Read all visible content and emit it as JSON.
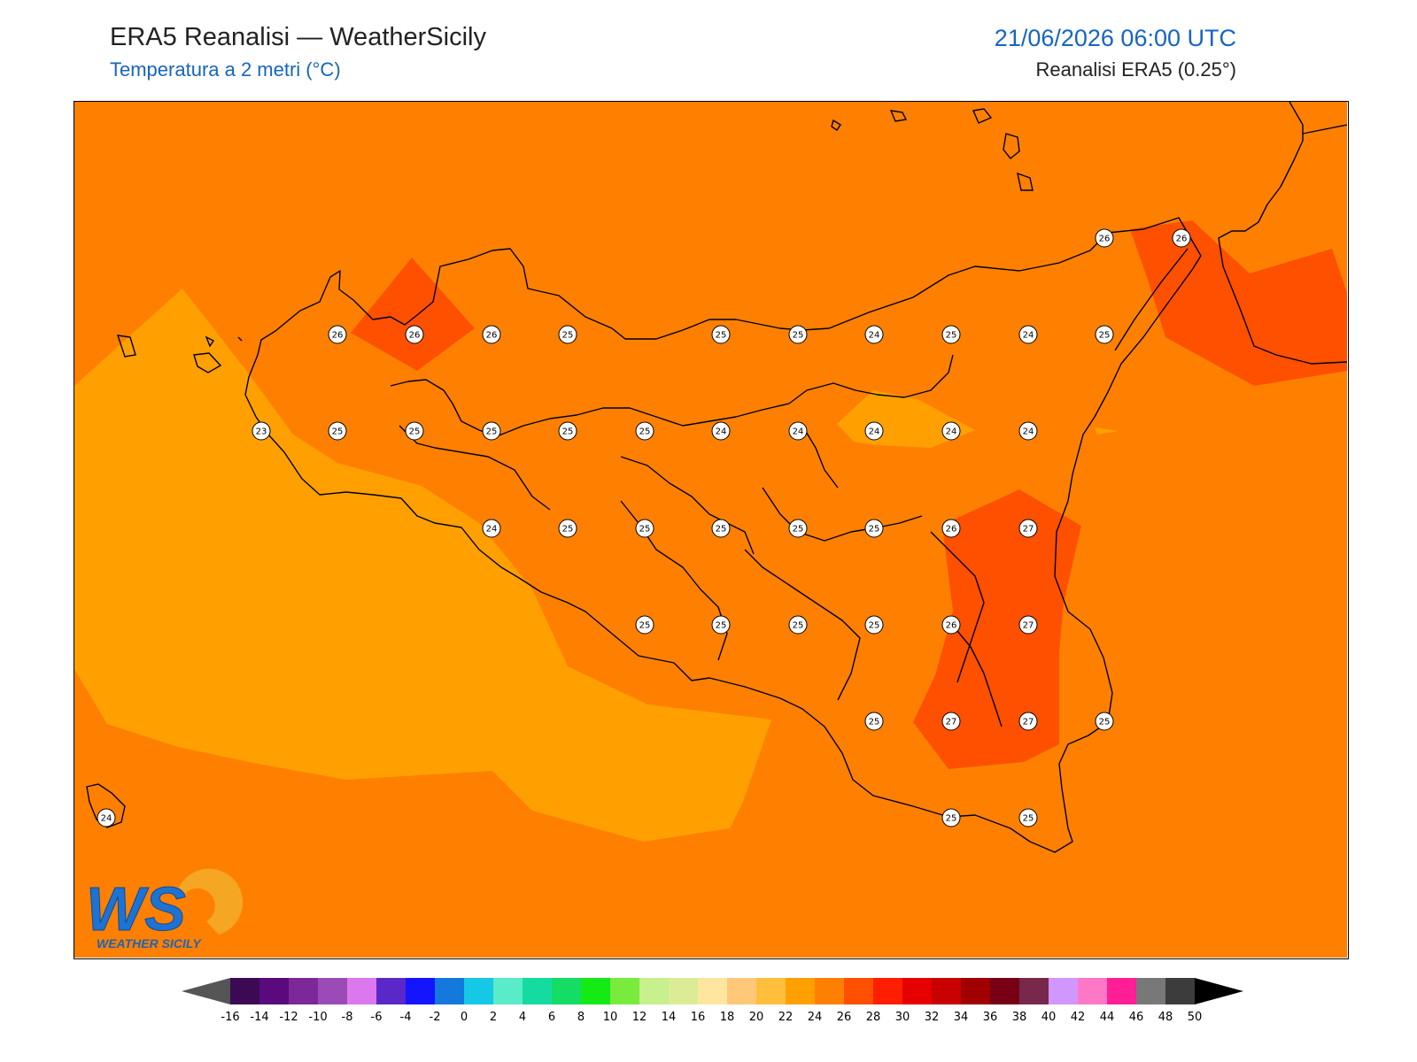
{
  "header": {
    "title": "ERA5 Reanalisi — WeatherSicily",
    "subtitle": "Temperatura a 2 metri (°C)",
    "datetime": "21/06/2026 06:00 UTC",
    "source": "Reanalisi ERA5 (0.25°)"
  },
  "logo": {
    "initials": "WS",
    "name": "WEATHER SICILY"
  },
  "colors": {
    "background_field": "#ff8000",
    "warm_zone": "#ff5000",
    "cool_zone": "#ffa000",
    "coastline": "#000000"
  },
  "colorbar": {
    "ticks": [
      "-16",
      "-14",
      "-12",
      "-10",
      "-8",
      "-6",
      "-4",
      "-2",
      "0",
      "2",
      "4",
      "6",
      "8",
      "10",
      "12",
      "14",
      "16",
      "18",
      "20",
      "22",
      "24",
      "26",
      "28",
      "30",
      "32",
      "34",
      "36",
      "38",
      "40",
      "42",
      "44",
      "46",
      "48",
      "50"
    ],
    "colors": [
      "#3c0a55",
      "#5a0a7c",
      "#7c2898",
      "#9b4bb8",
      "#dd77ee",
      "#5a28c8",
      "#1414ff",
      "#1478dc",
      "#14c8e6",
      "#5aebc8",
      "#14dca0",
      "#14dc64",
      "#14eb14",
      "#78eb3c",
      "#c8f08c",
      "#dcec96",
      "#ffe6a0",
      "#ffc878",
      "#ffbe3c",
      "#ffa000",
      "#ff8000",
      "#ff5000",
      "#ff1e00",
      "#e60000",
      "#c80000",
      "#a00000",
      "#780014",
      "#78284b",
      "#d296ff",
      "#ff78c8",
      "#ff1e96",
      "#787878",
      "#3c3c3c"
    ],
    "under_color": "#555555",
    "over_color": "#000000"
  },
  "stations": [
    {
      "label": "26"
    },
    {
      "label": "26"
    },
    {
      "label": "26"
    },
    {
      "label": "25"
    },
    {
      "label": "25"
    },
    {
      "label": "25"
    },
    {
      "label": "24"
    },
    {
      "label": "25"
    },
    {
      "label": "24"
    },
    {
      "label": "25"
    },
    {
      "label": "23"
    },
    {
      "label": "25"
    },
    {
      "label": "25"
    },
    {
      "label": "25"
    },
    {
      "label": "25"
    },
    {
      "label": "25"
    },
    {
      "label": "24"
    },
    {
      "label": "24"
    },
    {
      "label": "24"
    },
    {
      "label": "24"
    },
    {
      "label": "24"
    },
    {
      "label": "24"
    },
    {
      "label": "25"
    },
    {
      "label": "25"
    },
    {
      "label": "25"
    },
    {
      "label": "25"
    },
    {
      "label": "25"
    },
    {
      "label": "26"
    },
    {
      "label": "27"
    },
    {
      "label": "25"
    },
    {
      "label": "25"
    },
    {
      "label": "25"
    },
    {
      "label": "25"
    },
    {
      "label": "26"
    },
    {
      "label": "27"
    },
    {
      "label": "25"
    },
    {
      "label": "27"
    },
    {
      "label": "27"
    },
    {
      "label": "25"
    },
    {
      "label": "25"
    },
    {
      "label": "25"
    },
    {
      "label": "26"
    },
    {
      "label": "26"
    },
    {
      "label": "24"
    }
  ]
}
